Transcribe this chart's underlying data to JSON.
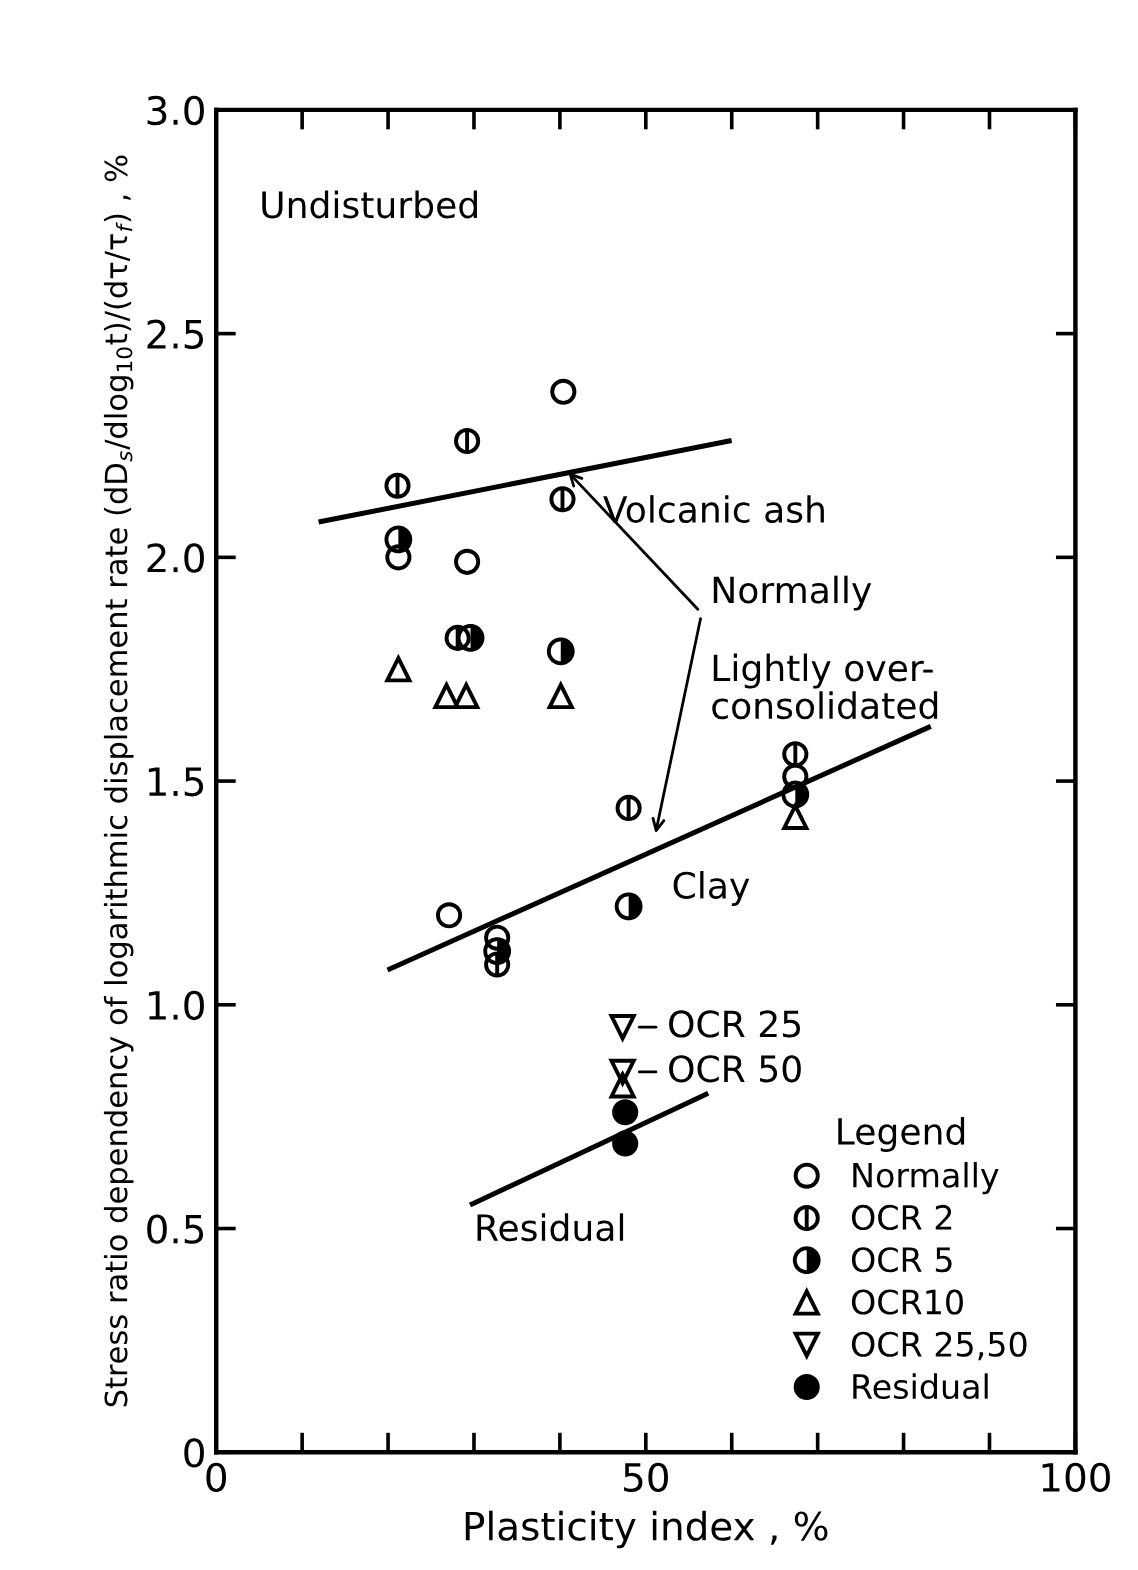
{
  "chart_data": {
    "type": "scatter",
    "xlabel": "Plasticity index , %",
    "ylabel": "Stress ratio dependency of logarithmic displacement rate (dD$_{s}$/dlog$_{10}$t)/(dτ/τ$_{f}$) , %",
    "xlim": [
      0,
      100
    ],
    "ylim": [
      0,
      3.0
    ],
    "xticks": [
      0,
      {
        "value": 10,
        "label": null
      },
      {
        "value": 20,
        "label": null
      },
      {
        "value": 30,
        "label": null
      },
      {
        "value": 40,
        "label": null
      },
      50,
      {
        "value": 60,
        "label": null
      },
      {
        "value": 70,
        "label": null
      },
      {
        "value": 80,
        "label": null
      },
      {
        "value": 90,
        "label": null
      },
      100
    ],
    "yticks": [
      0,
      0.5,
      {
        "value": 1,
        "label": "1.0"
      },
      1.5,
      {
        "value": 2,
        "label": "2.0"
      },
      2.5,
      {
        "value": 3,
        "label": "3.0"
      }
    ],
    "grid": false,
    "legend": "bottom right",
    "legend_title": "Legend",
    "series": [
      {
        "name": "Normally",
        "color": "#000000",
        "marker": "circle",
        "x": [
          40.4,
          21.2,
          29.2,
          67.4,
          27.1,
          32.7
        ],
        "values": [
          2.37,
          2.0,
          1.99,
          1.51,
          1.2,
          1.15
        ]
      },
      {
        "name": "OCR 2",
        "color": "#000000",
        "x": [
          29.2,
          21.1,
          40.3,
          28.1,
          67.4,
          48.0,
          32.7
        ],
        "values": [
          2.26,
          2.16,
          2.13,
          1.82,
          1.56,
          1.44,
          1.09
        ]
      },
      {
        "name": "OCR 5",
        "color": "#000000",
        "x": [
          21.2,
          29.6,
          40.1,
          67.4,
          48.0,
          32.7
        ],
        "values": [
          2.04,
          1.82,
          1.79,
          1.47,
          1.22,
          1.12
        ]
      },
      {
        "name": "OCR10",
        "color": "#000000",
        "marker": "triangle",
        "x": [
          21.2,
          26.8,
          29.1,
          40.1,
          67.4,
          47.3
        ],
        "values": [
          1.75,
          1.69,
          1.69,
          1.69,
          1.42,
          0.82
        ]
      },
      {
        "name": "OCR 25,50",
        "color": "#000000",
        "marker": "triangle",
        "x": [
          47.3,
          47.3
        ],
        "values": [
          0.95,
          0.85
        ]
      },
      {
        "name": "Residual",
        "color": "#000000",
        "marker": "circle",
        "x": [
          47.6,
          47.6
        ],
        "values": [
          0.76,
          0.69
        ]
      },
      {
        "type": "line",
        "color": "#000000",
        "marker": "none",
        "x": [
          12.2,
          59.7
        ],
        "values": [
          2.08,
          2.26
        ]
      },
      {
        "type": "line",
        "color": "#000000",
        "marker": "none",
        "x": [
          20.2,
          82.9
        ],
        "values": [
          1.08,
          1.62
        ]
      },
      {
        "type": "line",
        "color": "#000000",
        "marker": "none",
        "x": [
          29.8,
          57.0
        ],
        "values": [
          0.555,
          0.8
        ]
      }
    ],
    "annotations": [
      "Undisturbed",
      "Volcanic ash",
      {
        "text": "Normally",
        "x": 40.5,
        "y": 2.2
      },
      "Lightly over-\nconsolidated",
      "Clay",
      "OCR 25",
      "OCR 50",
      "Residual"
    ]
  }
}
